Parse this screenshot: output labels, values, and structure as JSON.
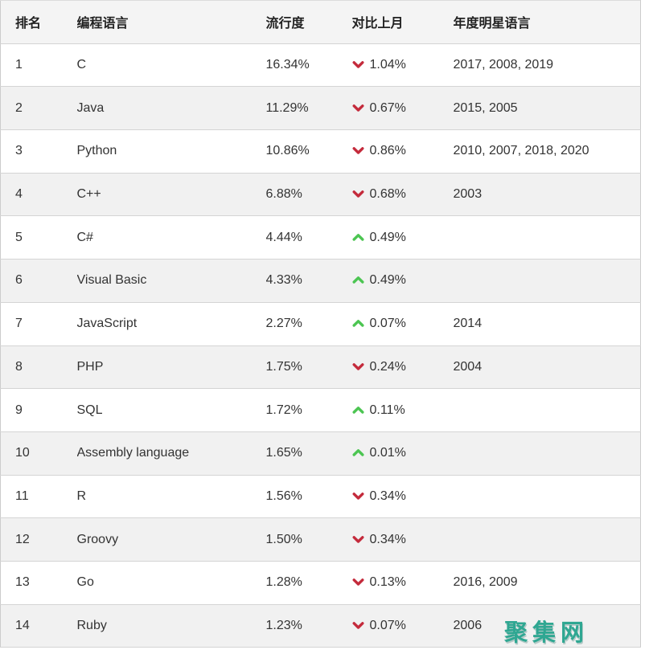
{
  "chart_data": {
    "type": "table",
    "columns": [
      "排名",
      "编程语言",
      "流行度",
      "对比上月",
      "年度明星语言"
    ],
    "rows": [
      {
        "rank": "1",
        "language": "C",
        "popularity": "16.34%",
        "change_direction": "down",
        "change": "1.04%",
        "star_years": "2017, 2008, 2019"
      },
      {
        "rank": "2",
        "language": "Java",
        "popularity": "11.29%",
        "change_direction": "down",
        "change": "0.67%",
        "star_years": "2015, 2005"
      },
      {
        "rank": "3",
        "language": "Python",
        "popularity": "10.86%",
        "change_direction": "down",
        "change": "0.86%",
        "star_years": "2010, 2007, 2018, 2020"
      },
      {
        "rank": "4",
        "language": "C++",
        "popularity": "6.88%",
        "change_direction": "down",
        "change": "0.68%",
        "star_years": "2003"
      },
      {
        "rank": "5",
        "language": "C#",
        "popularity": "4.44%",
        "change_direction": "up",
        "change": "0.49%",
        "star_years": ""
      },
      {
        "rank": "6",
        "language": "Visual Basic",
        "popularity": "4.33%",
        "change_direction": "up",
        "change": "0.49%",
        "star_years": ""
      },
      {
        "rank": "7",
        "language": "JavaScript",
        "popularity": "2.27%",
        "change_direction": "up",
        "change": "0.07%",
        "star_years": "2014"
      },
      {
        "rank": "8",
        "language": "PHP",
        "popularity": "1.75%",
        "change_direction": "down",
        "change": "0.24%",
        "star_years": "2004"
      },
      {
        "rank": "9",
        "language": "SQL",
        "popularity": "1.72%",
        "change_direction": "up",
        "change": "0.11%",
        "star_years": ""
      },
      {
        "rank": "10",
        "language": "Assembly language",
        "popularity": "1.65%",
        "change_direction": "up",
        "change": "0.01%",
        "star_years": ""
      },
      {
        "rank": "11",
        "language": "R",
        "popularity": "1.56%",
        "change_direction": "down",
        "change": "0.34%",
        "star_years": ""
      },
      {
        "rank": "12",
        "language": "Groovy",
        "popularity": "1.50%",
        "change_direction": "down",
        "change": "0.34%",
        "star_years": ""
      },
      {
        "rank": "13",
        "language": "Go",
        "popularity": "1.28%",
        "change_direction": "down",
        "change": "0.13%",
        "star_years": "2016, 2009"
      },
      {
        "rank": "14",
        "language": "Ruby",
        "popularity": "1.23%",
        "change_direction": "down",
        "change": "0.07%",
        "star_years": "2006"
      }
    ],
    "title": "",
    "legend": "none",
    "grid": "row-separators"
  },
  "colors": {
    "down_arrow": "#c42b3c",
    "up_arrow": "#4cc552",
    "header_bg": "#f4f4f4",
    "alt_row_bg": "#f1f1f1",
    "row_bg": "#ffffff",
    "border": "#d4d4d4",
    "text": "#333333",
    "watermark": "#2fa792"
  },
  "watermark": {
    "text": "聚集网"
  }
}
